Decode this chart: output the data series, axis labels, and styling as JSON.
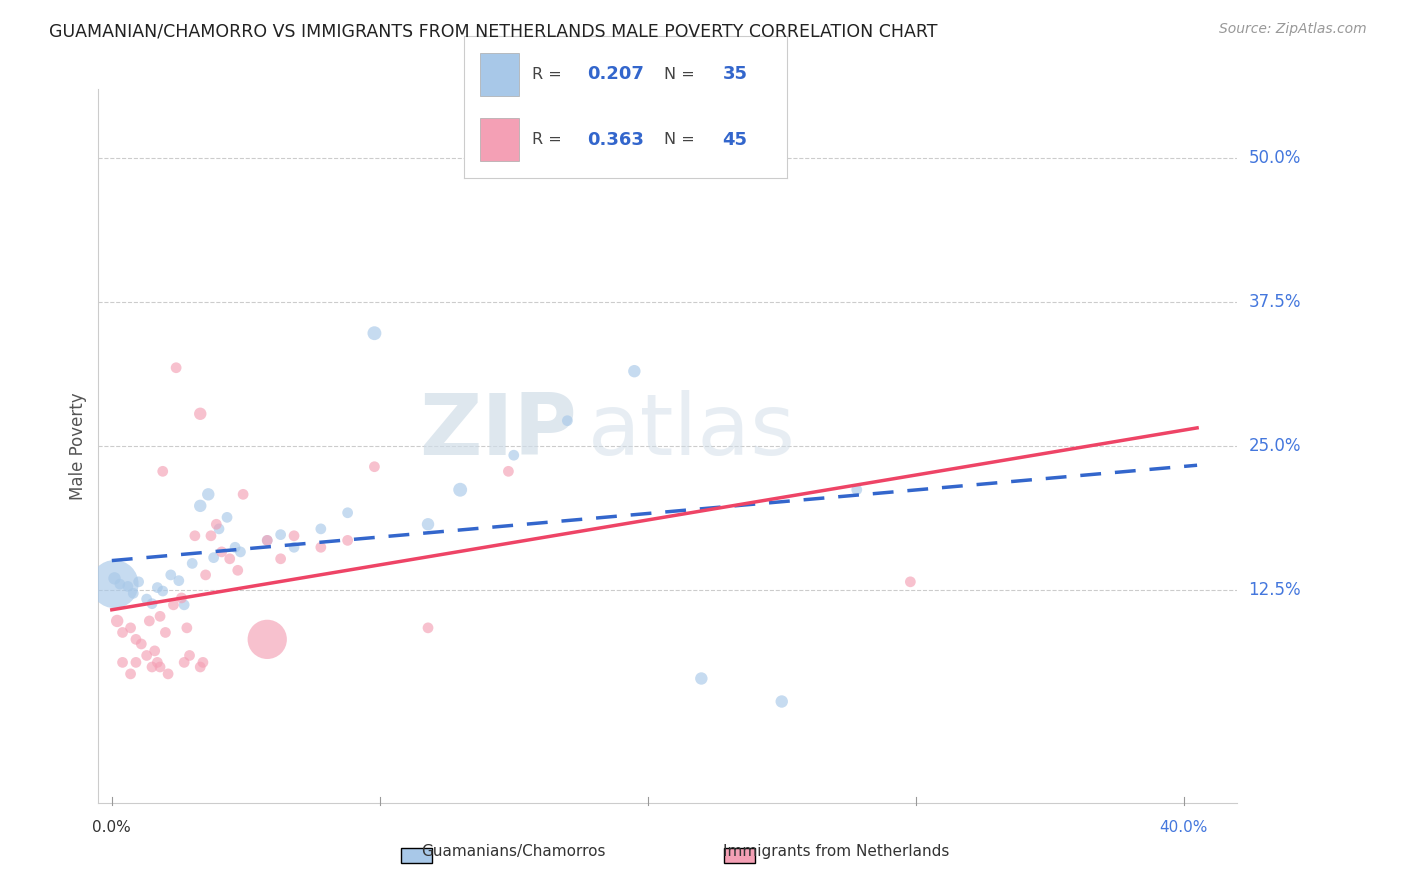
{
  "title": "GUAMANIAN/CHAMORRO VS IMMIGRANTS FROM NETHERLANDS MALE POVERTY CORRELATION CHART",
  "source": "Source: ZipAtlas.com",
  "ylabel": "Male Poverty",
  "ytick_labels": [
    "50.0%",
    "37.5%",
    "25.0%",
    "12.5%"
  ],
  "ytick_values": [
    0.5,
    0.375,
    0.25,
    0.125
  ],
  "xtick_labels": [
    "0.0%",
    "40.0%"
  ],
  "xtick_values": [
    0.0,
    0.4
  ],
  "xlim": [
    -0.005,
    0.42
  ],
  "ylim": [
    -0.06,
    0.56
  ],
  "legend_label1": "Guamanians/Chamorros",
  "legend_label2": "Immigrants from Netherlands",
  "R1": "0.207",
  "N1": "35",
  "R2": "0.363",
  "N2": "45",
  "color_blue": "#a8c8e8",
  "color_pink": "#f4a0b5",
  "color_blue_line": "#3366cc",
  "color_pink_line": "#ee4466",
  "watermark_zip": "ZIP",
  "watermark_atlas": "atlas",
  "blue_scatter": [
    [
      0.001,
      0.135
    ],
    [
      0.003,
      0.13
    ],
    [
      0.006,
      0.128
    ],
    [
      0.008,
      0.122
    ],
    [
      0.01,
      0.132
    ],
    [
      0.013,
      0.117
    ],
    [
      0.015,
      0.113
    ],
    [
      0.017,
      0.127
    ],
    [
      0.019,
      0.124
    ],
    [
      0.022,
      0.138
    ],
    [
      0.025,
      0.133
    ],
    [
      0.027,
      0.112
    ],
    [
      0.03,
      0.148
    ],
    [
      0.033,
      0.198
    ],
    [
      0.036,
      0.208
    ],
    [
      0.038,
      0.153
    ],
    [
      0.04,
      0.178
    ],
    [
      0.043,
      0.188
    ],
    [
      0.046,
      0.162
    ],
    [
      0.048,
      0.158
    ],
    [
      0.058,
      0.168
    ],
    [
      0.063,
      0.173
    ],
    [
      0.068,
      0.162
    ],
    [
      0.078,
      0.178
    ],
    [
      0.088,
      0.192
    ],
    [
      0.098,
      0.348
    ],
    [
      0.118,
      0.182
    ],
    [
      0.13,
      0.212
    ],
    [
      0.15,
      0.242
    ],
    [
      0.17,
      0.272
    ],
    [
      0.195,
      0.315
    ],
    [
      0.22,
      0.048
    ],
    [
      0.25,
      0.028
    ],
    [
      0.278,
      0.212
    ],
    [
      0.001,
      0.13
    ]
  ],
  "pink_scatter": [
    [
      0.002,
      0.098
    ],
    [
      0.004,
      0.088
    ],
    [
      0.007,
      0.092
    ],
    [
      0.009,
      0.082
    ],
    [
      0.011,
      0.078
    ],
    [
      0.014,
      0.098
    ],
    [
      0.016,
      0.072
    ],
    [
      0.018,
      0.102
    ],
    [
      0.02,
      0.088
    ],
    [
      0.023,
      0.112
    ],
    [
      0.026,
      0.118
    ],
    [
      0.028,
      0.092
    ],
    [
      0.031,
      0.172
    ],
    [
      0.033,
      0.278
    ],
    [
      0.035,
      0.138
    ],
    [
      0.037,
      0.172
    ],
    [
      0.039,
      0.182
    ],
    [
      0.041,
      0.158
    ],
    [
      0.044,
      0.152
    ],
    [
      0.047,
      0.142
    ],
    [
      0.049,
      0.208
    ],
    [
      0.058,
      0.168
    ],
    [
      0.063,
      0.152
    ],
    [
      0.068,
      0.172
    ],
    [
      0.078,
      0.162
    ],
    [
      0.088,
      0.168
    ],
    [
      0.098,
      0.232
    ],
    [
      0.118,
      0.092
    ],
    [
      0.148,
      0.228
    ],
    [
      0.019,
      0.228
    ],
    [
      0.024,
      0.318
    ],
    [
      0.004,
      0.062
    ],
    [
      0.007,
      0.052
    ],
    [
      0.009,
      0.062
    ],
    [
      0.013,
      0.068
    ],
    [
      0.015,
      0.058
    ],
    [
      0.017,
      0.062
    ],
    [
      0.018,
      0.058
    ],
    [
      0.021,
      0.052
    ],
    [
      0.027,
      0.062
    ],
    [
      0.029,
      0.068
    ],
    [
      0.033,
      0.058
    ],
    [
      0.034,
      0.062
    ],
    [
      0.298,
      0.132
    ],
    [
      0.058,
      0.082
    ]
  ],
  "blue_sizes": [
    40,
    30,
    30,
    30,
    30,
    30,
    30,
    30,
    30,
    30,
    30,
    30,
    30,
    40,
    40,
    30,
    30,
    30,
    30,
    30,
    30,
    30,
    30,
    30,
    30,
    50,
    40,
    50,
    30,
    30,
    40,
    40,
    40,
    30,
    600
  ],
  "pink_sizes": [
    40,
    30,
    30,
    30,
    30,
    30,
    30,
    30,
    30,
    30,
    30,
    30,
    30,
    40,
    30,
    30,
    30,
    30,
    30,
    30,
    30,
    30,
    30,
    30,
    30,
    30,
    30,
    30,
    30,
    30,
    30,
    30,
    30,
    30,
    30,
    30,
    30,
    30,
    30,
    30,
    30,
    30,
    30,
    30,
    400
  ]
}
